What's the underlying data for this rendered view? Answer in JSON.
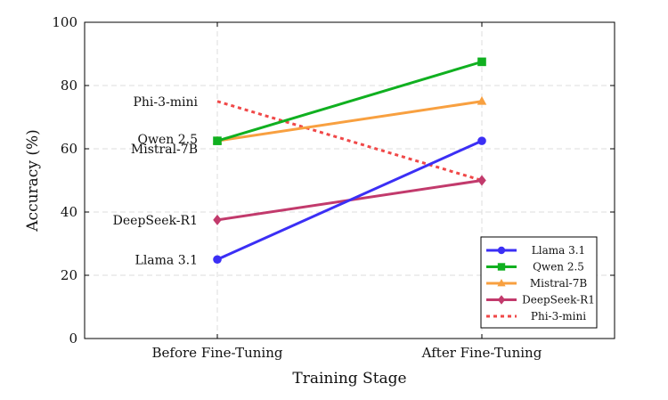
{
  "chart_data": {
    "type": "line",
    "title": "",
    "xlabel": "Training Stage",
    "ylabel": "Accuracy (%)",
    "categories": [
      "Before Fine-Tuning",
      "After Fine-Tuning"
    ],
    "ylim": [
      0,
      100
    ],
    "yticks": [
      0,
      20,
      40,
      60,
      80,
      100
    ],
    "grid": true,
    "legend_position": "bottom-right",
    "series": [
      {
        "name": "Llama 3.1",
        "values": [
          25,
          62.5
        ],
        "color": "#3b2ff5",
        "marker": "circle",
        "dash": "solid"
      },
      {
        "name": "Qwen 2.5",
        "values": [
          62.5,
          87.5
        ],
        "color": "#10b020",
        "marker": "square",
        "dash": "solid"
      },
      {
        "name": "Mistral-7B",
        "values": [
          62.5,
          75
        ],
        "color": "#f8a040",
        "marker": "triangle",
        "dash": "solid"
      },
      {
        "name": "DeepSeek-R1",
        "values": [
          37.5,
          50
        ],
        "color": "#c23a6c",
        "marker": "diamond",
        "dash": "solid"
      },
      {
        "name": "Phi-3-mini",
        "values": [
          75,
          50
        ],
        "color": "#f04848",
        "marker": "none",
        "dash": "dotted"
      }
    ]
  }
}
